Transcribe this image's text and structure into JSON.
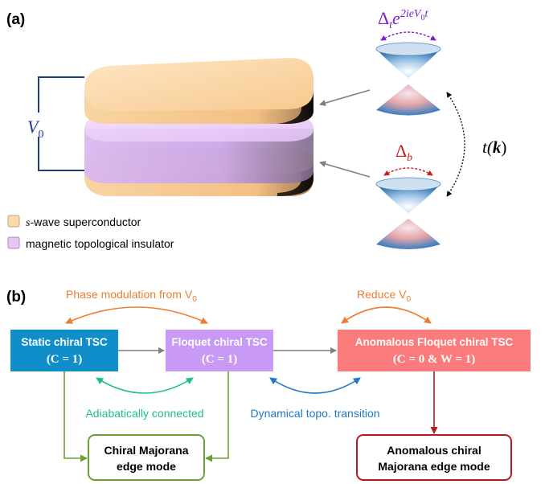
{
  "panel_a": {
    "label": "(a)",
    "voltage_symbol": "V",
    "voltage_sub": "0",
    "legend": [
      {
        "text": "-wave superconductor",
        "prefix": "s",
        "color": "#fcd9a8"
      },
      {
        "text": "magnetic topological insulator",
        "prefix": "",
        "color": "#e6c6f5"
      }
    ],
    "delta_top": {
      "base": "Δ",
      "sub": "t",
      "e": "e",
      "exp": "2ieV",
      "exp_sub": "0",
      "exp_t": "t",
      "color": "#7a20d0"
    },
    "delta_bottom": {
      "base": "Δ",
      "sub": "b",
      "color": "#cc1b1b"
    },
    "hopping": {
      "text_pre": "t(",
      "bold": "k",
      "text_post": ")"
    }
  },
  "panel_b": {
    "label": "(b)",
    "boxes": {
      "static": {
        "line1": "Static chiral TSC",
        "line2": "(C = 1)",
        "color": "#0f8ec9"
      },
      "floquet": {
        "line1": "Floquet chiral TSC",
        "line2": "(C = 1)",
        "color": "#c89af5"
      },
      "anomalous": {
        "line1": "Anomalous Floquet chiral TSC",
        "line2": "(C = 0 & W = 1)",
        "color": "#fb7a7b"
      },
      "chiral_mode": {
        "line1": "Chiral Majorana",
        "line2": "edge mode",
        "border": "#6aa135"
      },
      "anomalous_mode": {
        "line1": "Anomalous chiral",
        "line2": "Majorana edge mode",
        "border": "#b41c1c"
      }
    },
    "arrows": {
      "phase_mod": {
        "text": "Phase modulation from V",
        "sub": "0",
        "color": "#ed7d31"
      },
      "reduce": {
        "text": "Reduce V",
        "sub": "0",
        "color": "#ed7d31"
      },
      "adiabatic": {
        "text": "Adiabatically connected",
        "color": "#1fbe8f"
      },
      "dynamical": {
        "text": "Dynamical topo. transition",
        "color": "#1f78c8"
      }
    }
  }
}
